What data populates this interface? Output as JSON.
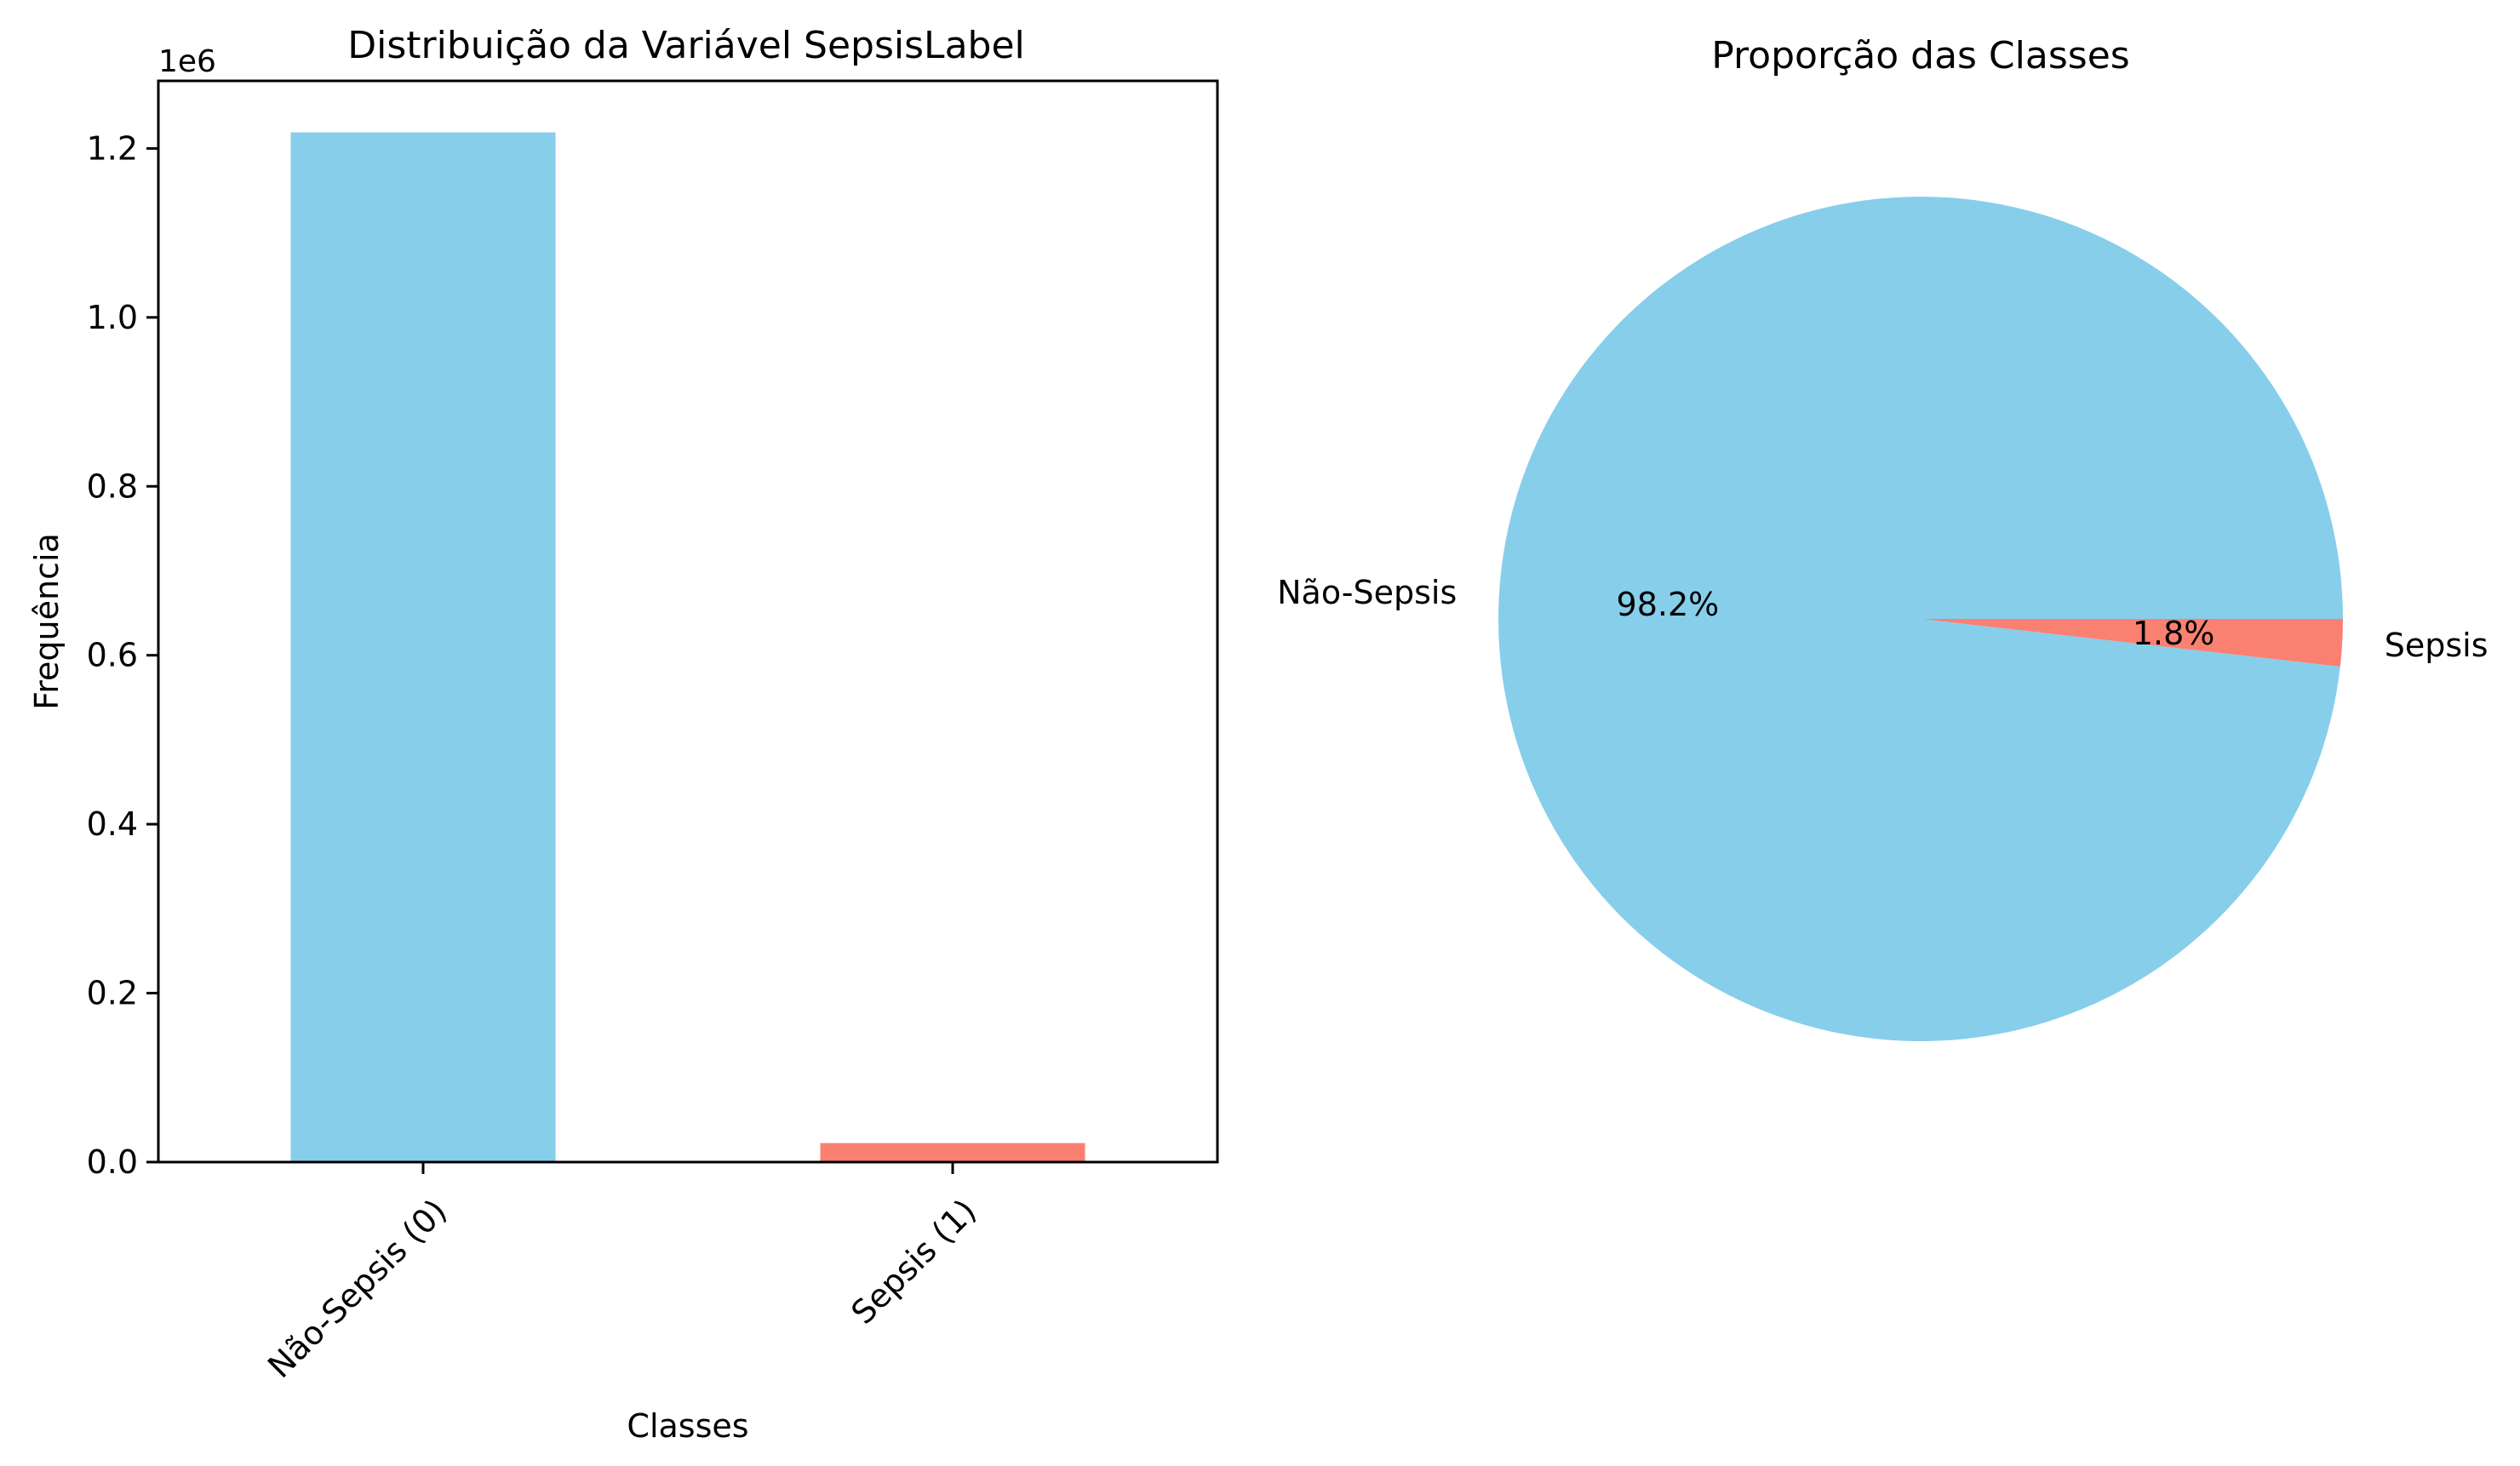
{
  "chart_data": [
    {
      "type": "bar",
      "title": "Distribuição da Variável SepsisLabel",
      "xlabel": "Classes",
      "ylabel": "Frequência",
      "categories": [
        "Não-Sepsis (0)",
        "Sepsis (1)"
      ],
      "values": [
        1219000,
        22500
      ],
      "colors": [
        "#87ceeb",
        "#fa8072"
      ],
      "ylim": [
        0,
        1280000
      ],
      "y_ticks": [
        0,
        0.2,
        0.4,
        0.6,
        0.8,
        1.0,
        1.2
      ],
      "y_tick_labels": [
        "0.0",
        "0.2",
        "0.4",
        "0.6",
        "0.8",
        "1.0",
        "1.2"
      ],
      "y_scale_multiplier": 1000000,
      "y_offset_label": "1e6",
      "grid": false,
      "legend": "none"
    },
    {
      "type": "pie",
      "title": "Proporção das Classes",
      "labels": [
        "Não-Sepsis",
        "Sepsis"
      ],
      "values": [
        98.2,
        1.8
      ],
      "value_labels": [
        "98.2%",
        "1.8%"
      ],
      "colors": [
        "#87ceeb",
        "#fa8072"
      ],
      "legend": "none"
    }
  ]
}
